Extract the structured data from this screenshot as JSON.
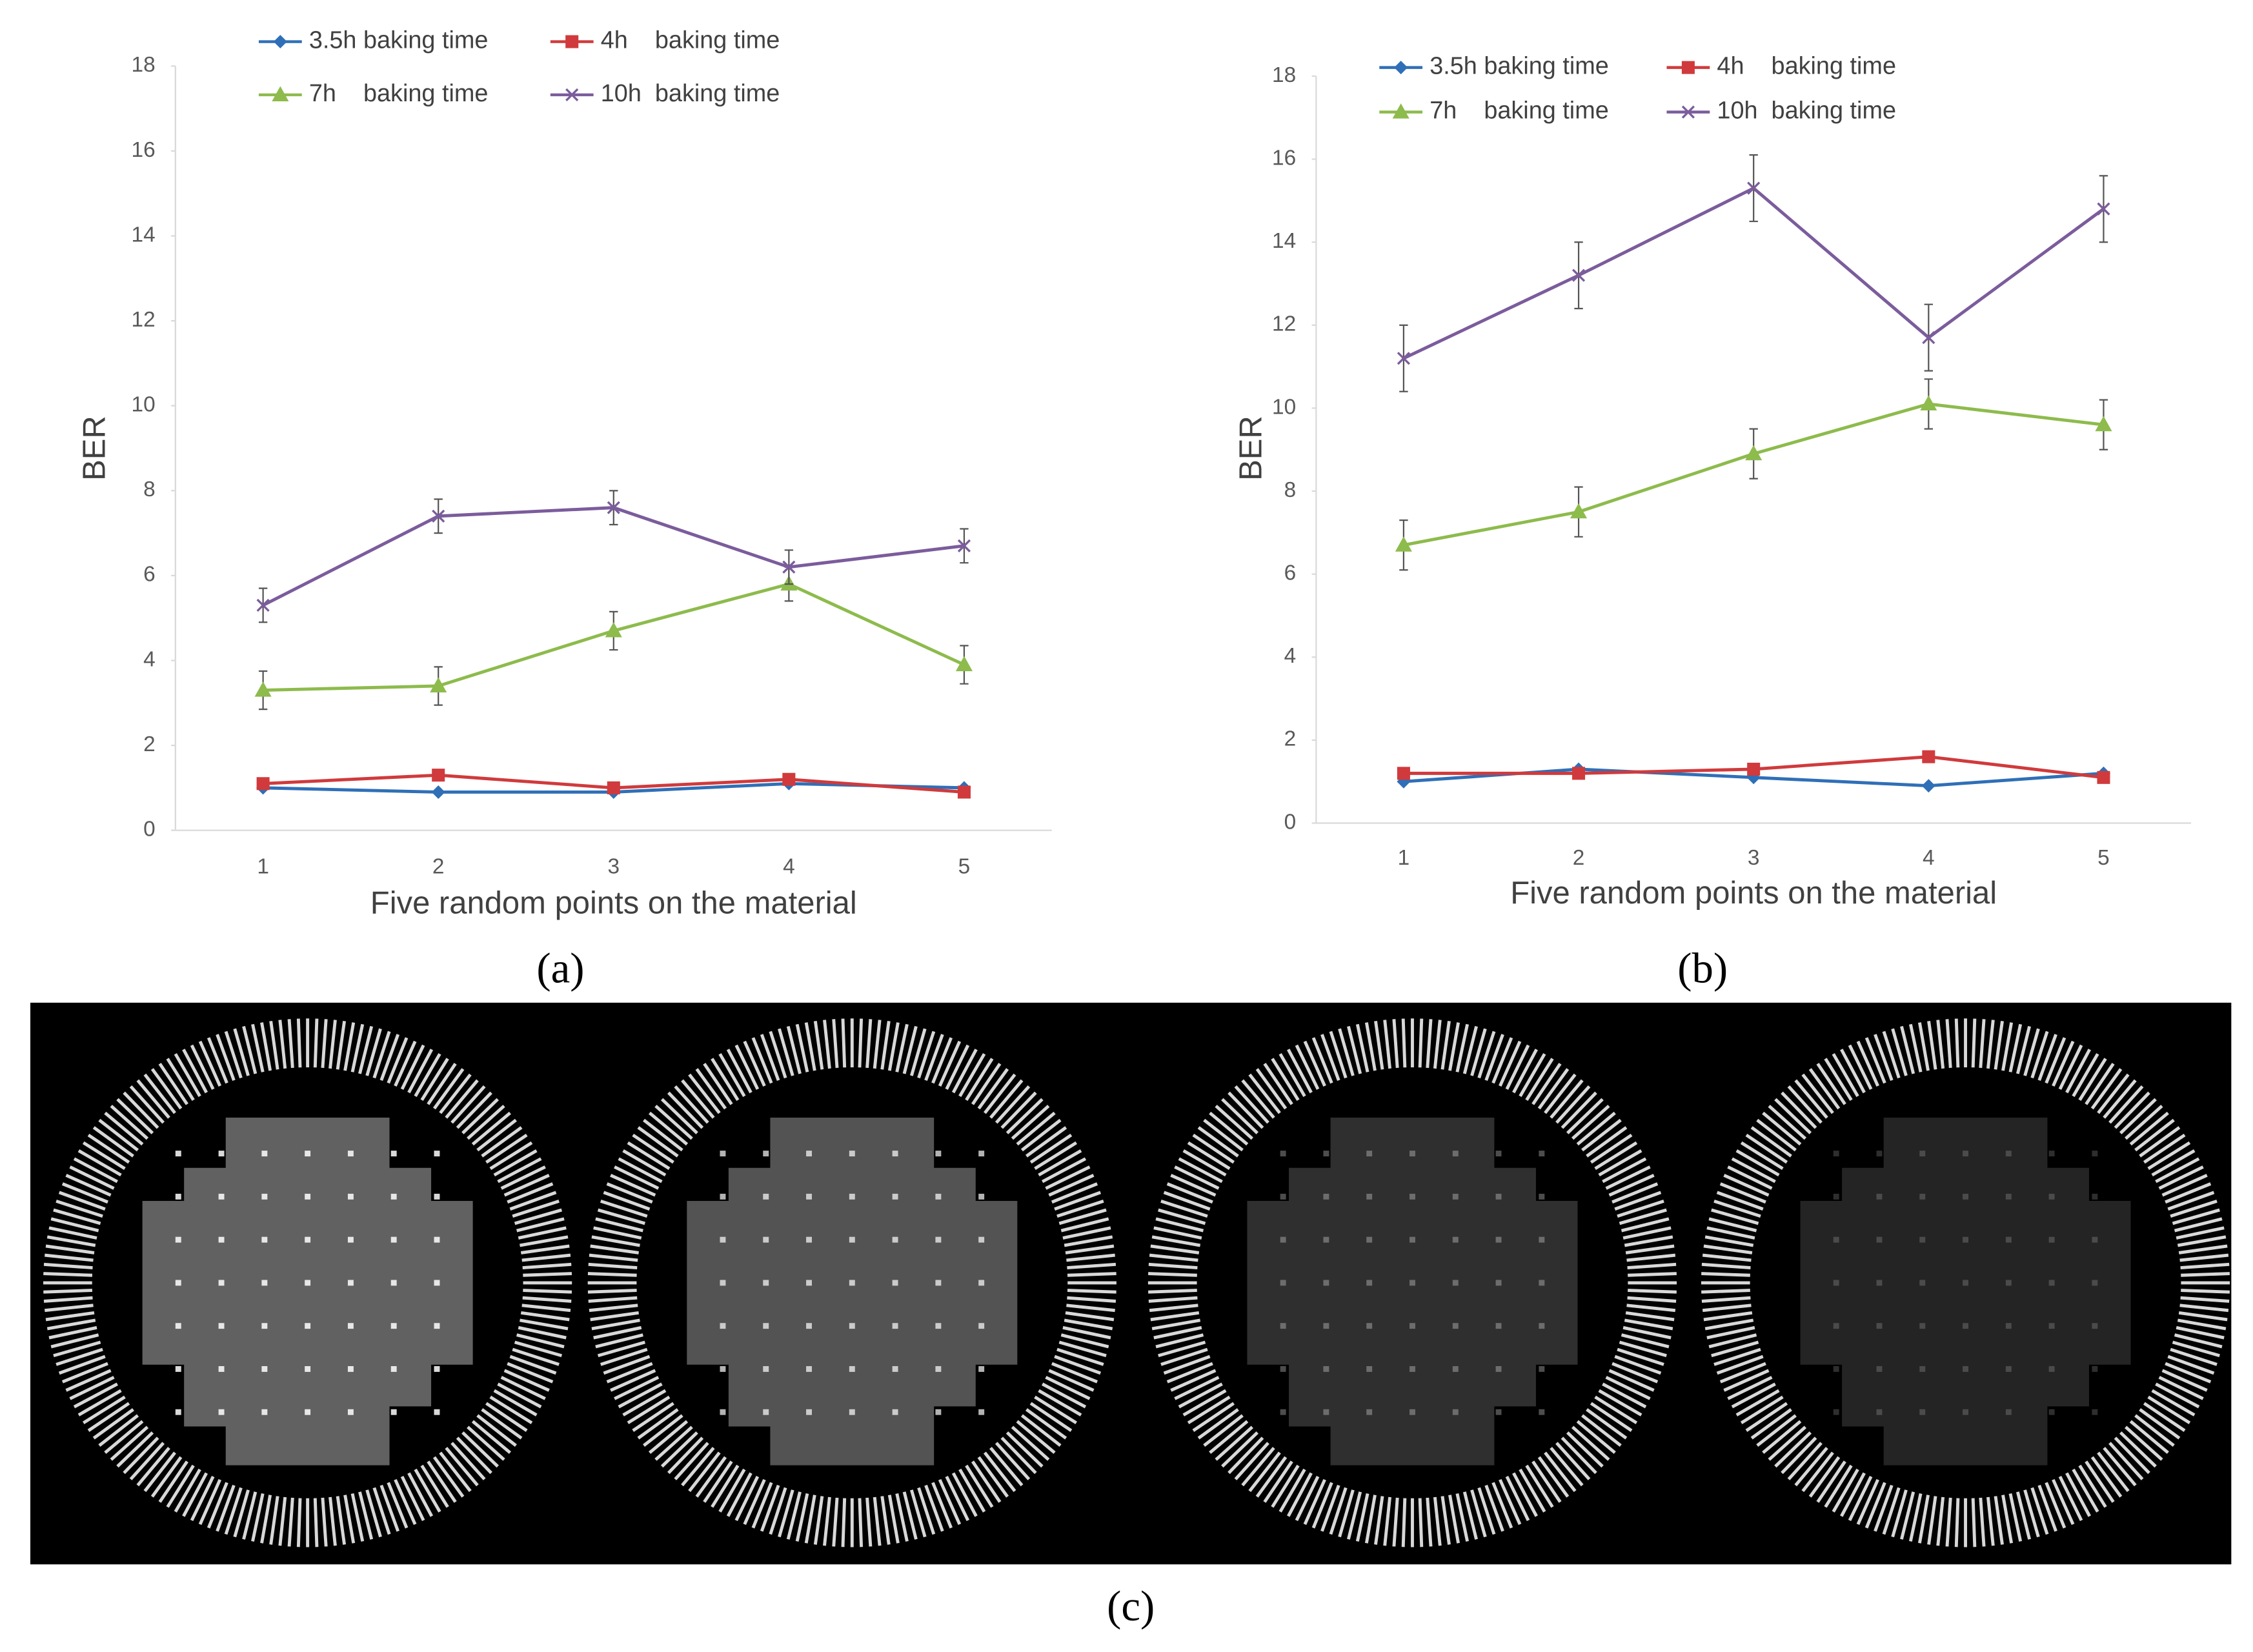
{
  "chart_data": [
    {
      "type": "line",
      "panel_label": "(a)",
      "x_label": "Five random points on the material",
      "y_label": "BER",
      "categories": [
        "1",
        "2",
        "3",
        "4",
        "5"
      ],
      "ylim": [
        0,
        18
      ],
      "yticks": [
        0,
        2,
        4,
        6,
        8,
        10,
        12,
        14,
        16,
        18
      ],
      "grid": false,
      "series": [
        {
          "name": "3.5h baking time",
          "color": "#2f6fb7",
          "marker": "diamond",
          "values": [
            1.0,
            0.9,
            0.9,
            1.1,
            1.0
          ]
        },
        {
          "name": "4h    baking time",
          "color": "#d03a3c",
          "marker": "square",
          "values": [
            1.1,
            1.3,
            1.0,
            1.2,
            0.9
          ]
        },
        {
          "name": "7h    baking time",
          "color": "#8dbb4c",
          "marker": "triangle",
          "values": [
            3.3,
            3.4,
            4.7,
            5.8,
            3.9
          ],
          "errors": [
            0.45,
            0.45,
            0.45,
            0.4,
            0.45
          ]
        },
        {
          "name": "10h  baking time",
          "color": "#7b5c9c",
          "marker": "x",
          "values": [
            5.3,
            7.4,
            7.6,
            6.2,
            6.7
          ],
          "errors": [
            0.4,
            0.4,
            0.4,
            0.4,
            0.4
          ]
        }
      ]
    },
    {
      "type": "line",
      "panel_label": "(b)",
      "x_label": "Five random points on the material",
      "y_label": "BER",
      "categories": [
        "1",
        "2",
        "3",
        "4",
        "5"
      ],
      "ylim": [
        0,
        18
      ],
      "yticks": [
        0,
        2,
        4,
        6,
        8,
        10,
        12,
        14,
        16,
        18
      ],
      "grid": false,
      "series": [
        {
          "name": "3.5h baking time",
          "color": "#2f6fb7",
          "marker": "diamond",
          "values": [
            1.0,
            1.3,
            1.1,
            0.9,
            1.2
          ]
        },
        {
          "name": "4h    baking time",
          "color": "#d03a3c",
          "marker": "square",
          "values": [
            1.2,
            1.2,
            1.3,
            1.6,
            1.1
          ]
        },
        {
          "name": "7h    baking time",
          "color": "#8dbb4c",
          "marker": "triangle",
          "values": [
            6.7,
            7.5,
            8.9,
            10.1,
            9.6
          ],
          "errors": [
            0.6,
            0.6,
            0.6,
            0.6,
            0.6
          ]
        },
        {
          "name": "10h  baking time",
          "color": "#7b5c9c",
          "marker": "x",
          "values": [
            11.2,
            13.2,
            15.3,
            11.7,
            14.8
          ],
          "errors": [
            0.8,
            0.8,
            0.8,
            0.8,
            0.8
          ]
        }
      ]
    }
  ],
  "figure_c": {
    "label": "(c)"
  }
}
